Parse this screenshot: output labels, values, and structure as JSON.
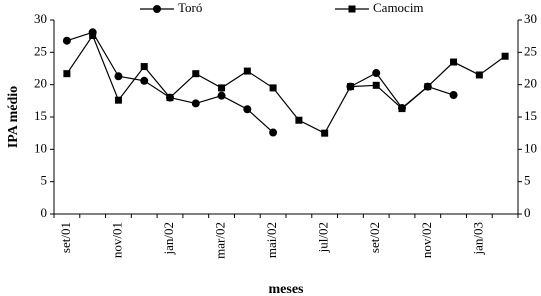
{
  "chart_data": {
    "type": "line",
    "x_label": "meses",
    "y_label": "IPA médio",
    "categories": [
      "set/01",
      null,
      "nov/01",
      null,
      "jan/02",
      null,
      "mar/02",
      null,
      "mai/02",
      null,
      "jul/02",
      null,
      "set/02",
      null,
      "nov/02",
      null,
      "jan/03",
      null
    ],
    "series": [
      {
        "name": "Toró",
        "color": "#000000",
        "marker": "circle",
        "values": [
          26.8,
          28.1,
          21.3,
          20.6,
          18.0,
          17.1,
          18.3,
          16.2,
          12.6,
          null,
          null,
          19.7,
          21.8,
          16.4,
          19.7,
          18.4,
          null,
          null
        ]
      },
      {
        "name": "Camocim",
        "color": "#000000",
        "marker": "square",
        "values": [
          21.7,
          27.6,
          17.6,
          22.8,
          18.0,
          21.7,
          19.5,
          22.1,
          19.5,
          14.5,
          12.5,
          19.7,
          19.9,
          16.3,
          19.7,
          23.5,
          21.5,
          24.4
        ]
      }
    ],
    "ylim": [
      0,
      30
    ],
    "yticks": [
      0,
      5,
      10,
      15,
      20,
      25,
      30
    ],
    "y2lim": [
      0,
      30
    ],
    "y2ticks": [
      0,
      5,
      10,
      15,
      20,
      25,
      30
    ],
    "legend": "top"
  }
}
